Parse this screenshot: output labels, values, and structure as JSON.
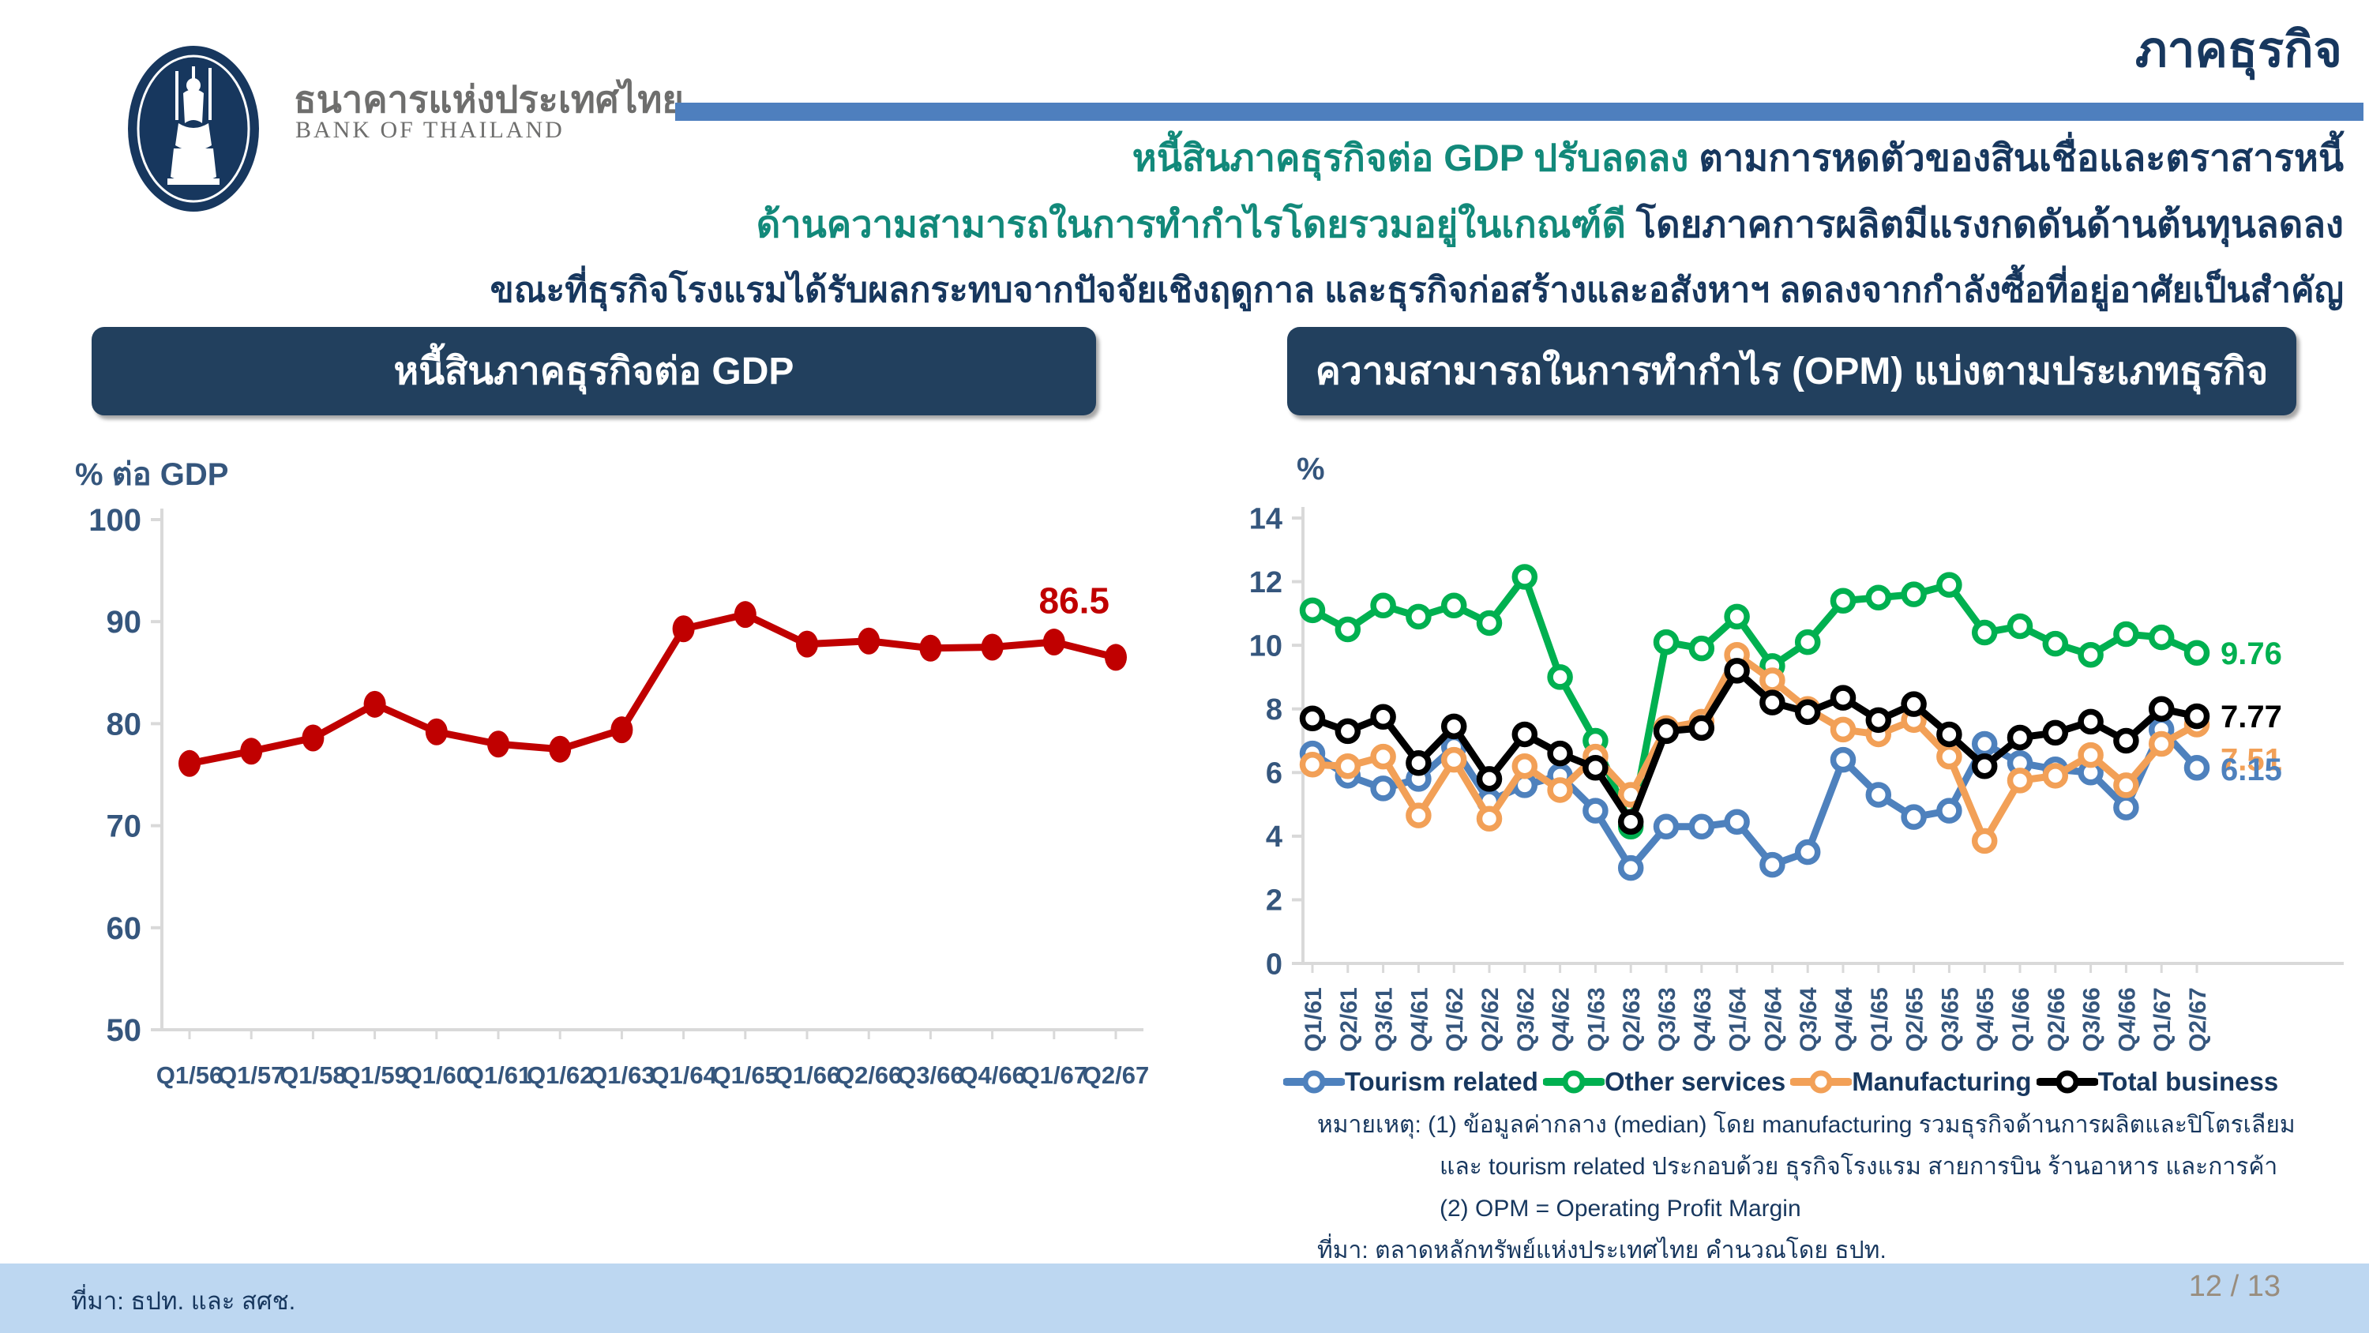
{
  "header": {
    "page_title": "ภาคธุรกิจ",
    "logo": {
      "thai_name": "ธนาคารแห่งประเทศไทย",
      "eng_name": "BANK OF THAILAND"
    },
    "headline": {
      "line1_highlight": "หนี้สินภาคธุรกิจต่อ GDP ปรับลดลง",
      "line1_rest": " ตามการหดตัวของสินเชื่อและตราสารหนี้",
      "line2_highlight": "ด้านความสามารถในการทำกำไรโดยรวมอยู่ในเกณฑ์ดี",
      "line2_rest": " โดยภาคการผลิตมีแรงกดดันด้านต้นทุนลดลง",
      "line3": "ขณะที่ธุรกิจโรงแรมได้รับผลกระทบจากปัจจัยเชิงฤดูกาล และธุรกิจก่อสร้างและอสังหาฯ ลดลงจากกำลังซื้อที่อยู่อาศัยเป็นสำคัญ"
    }
  },
  "left_panel_title": "หนี้สินภาคธุรกิจต่อ GDP",
  "right_panel_title": "ความสามารถในการทำกำไร (OPM) แบ่งตามประเภทธุรกิจ",
  "footnotes": {
    "line1": "หมายเหตุ: (1) ข้อมูลค่ากลาง (median) โดย manufacturing รวมธุรกิจด้านการผลิตและปิโตรเลียม",
    "line2": "และ tourism related ประกอบด้วย ธุรกิจโรงแรม สายการบิน ร้านอาหาร และการค้า",
    "line3": "(2) OPM = Operating Profit Margin",
    "line4": "ที่มา: ตลาดหลักทรัพย์แห่งประเทศไทย คำนวณโดย ธปท."
  },
  "footer": {
    "source": "ที่มา: ธปท. และ สศช.",
    "page": "12 / 13"
  },
  "colors": {
    "navy": "#17375E",
    "teal": "#12897A",
    "divider_blue": "#4E7FBE",
    "panel_navy": "#22405E",
    "footer_blue": "#BDD7F1",
    "page_number": "#998D7E",
    "axis_label": "#35567D",
    "axis_line": "#D9D9D9",
    "red": "#C00000",
    "green": "#00B050",
    "orange": "#F2A057",
    "blue": "#4E81BD",
    "black": "#000000"
  },
  "chart_data": [
    {
      "type": "line",
      "title": "หนี้สินภาคธุรกิจต่อ GDP",
      "ylabel": "% ต่อ GDP",
      "ylim": [
        50,
        100
      ],
      "yticks": [
        50,
        60,
        70,
        80,
        90,
        100
      ],
      "grid": false,
      "categories": [
        "Q1/56",
        "Q1/57",
        "Q1/58",
        "Q1/59",
        "Q1/60",
        "Q1/61",
        "Q1/62",
        "Q1/63",
        "Q1/64",
        "Q1/65",
        "Q1/66",
        "Q2/66",
        "Q3/66",
        "Q4/66",
        "Q1/67",
        "Q2/67"
      ],
      "series": [
        {
          "name": "หนี้สินภาคธุรกิจต่อ GDP",
          "color": "#C00000",
          "values": [
            76.1,
            77.3,
            78.6,
            81.9,
            79.2,
            78.0,
            77.5,
            79.4,
            89.3,
            90.7,
            87.8,
            88.1,
            87.4,
            87.5,
            88.0,
            86.5
          ]
        }
      ],
      "end_labels": [
        {
          "series": 0,
          "text": "86.5",
          "color": "#C00000"
        }
      ]
    },
    {
      "type": "line",
      "title": "ความสามารถในการทำกำไร (OPM) แบ่งตามประเภทธุรกิจ",
      "ylabel": "%",
      "ylim": [
        0,
        14
      ],
      "yticks": [
        0,
        2,
        4,
        6,
        8,
        10,
        12,
        14
      ],
      "grid": false,
      "legend_position": "bottom",
      "categories": [
        "Q1/61",
        "Q2/61",
        "Q3/61",
        "Q4/61",
        "Q1/62",
        "Q2/62",
        "Q3/62",
        "Q4/62",
        "Q1/63",
        "Q2/63",
        "Q3/63",
        "Q4/63",
        "Q1/64",
        "Q2/64",
        "Q3/64",
        "Q4/64",
        "Q1/65",
        "Q2/65",
        "Q3/65",
        "Q4/65",
        "Q1/66",
        "Q2/66",
        "Q3/66",
        "Q4/66",
        "Q1/67",
        "Q2/67"
      ],
      "series": [
        {
          "name": "Tourism related",
          "color": "#4E81BD",
          "values": [
            6.6,
            5.9,
            5.5,
            5.8,
            6.8,
            5.1,
            5.6,
            5.9,
            4.8,
            3.0,
            4.3,
            4.3,
            4.45,
            3.1,
            3.5,
            6.4,
            5.3,
            4.6,
            4.8,
            6.9,
            6.3,
            6.1,
            6.0,
            4.9,
            7.35,
            6.15
          ]
        },
        {
          "name": "Other services",
          "color": "#00B050",
          "values": [
            11.1,
            10.5,
            11.25,
            10.9,
            11.25,
            10.7,
            12.15,
            9.0,
            7.0,
            4.3,
            10.1,
            9.9,
            10.9,
            9.35,
            10.1,
            11.4,
            11.5,
            11.6,
            11.9,
            10.4,
            10.6,
            10.05,
            9.7,
            10.35,
            10.25,
            9.76
          ]
        },
        {
          "name": "Manufacturing",
          "color": "#F2A057",
          "values": [
            6.25,
            6.2,
            6.5,
            4.65,
            6.4,
            4.55,
            6.2,
            5.45,
            6.5,
            5.3,
            7.4,
            7.6,
            9.7,
            8.9,
            8.0,
            7.35,
            7.2,
            7.65,
            6.5,
            3.85,
            5.75,
            5.9,
            6.55,
            5.6,
            6.9,
            7.51
          ]
        },
        {
          "name": "Total business",
          "color": "#000000",
          "values": [
            7.7,
            7.3,
            7.75,
            6.3,
            7.45,
            5.8,
            7.2,
            6.6,
            6.15,
            4.45,
            7.3,
            7.4,
            9.2,
            8.2,
            7.9,
            8.35,
            7.65,
            8.15,
            7.2,
            6.2,
            7.1,
            7.25,
            7.6,
            7.0,
            8.0,
            7.77
          ]
        }
      ],
      "end_labels": [
        {
          "series": 1,
          "text": "9.76",
          "color": "#00B050"
        },
        {
          "series": 3,
          "text": "7.77",
          "color": "#000000"
        },
        {
          "series": 2,
          "text": "7.51",
          "color": "#F2A057"
        },
        {
          "series": 0,
          "text": "6.15",
          "color": "#4E81BD"
        }
      ]
    }
  ]
}
